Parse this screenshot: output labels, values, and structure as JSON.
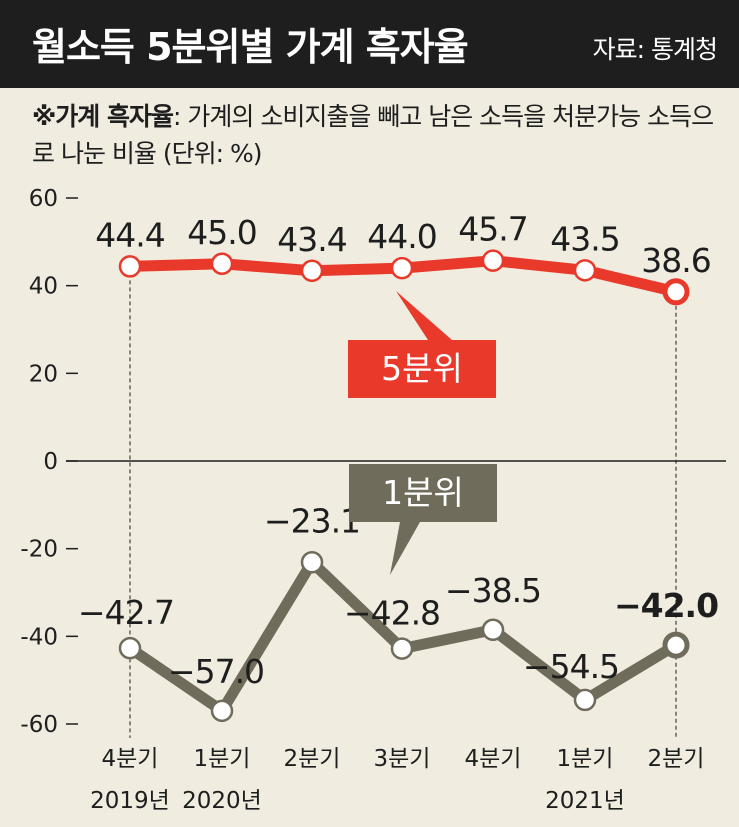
{
  "header": {
    "title": "월소득 5분위별 가계 흑자율",
    "source": "자료: 통계청"
  },
  "note": {
    "term": "※가계 흑자율",
    "text": ": 가계의 소비지출을 빼고 남은 소득을 처분가능 소득으로 나눈 비율 (단위: %)"
  },
  "colors": {
    "background": "#f0ece0",
    "header": "#1e1e1e",
    "quintile5": "#e8392b",
    "quintile1": "#706c5c",
    "text": "#1e1e1e"
  },
  "chart_data": {
    "type": "line",
    "categories": [
      [
        "4분기",
        "2019년"
      ],
      [
        "1분기",
        "2020년"
      ],
      [
        "2분기",
        ""
      ],
      [
        "3분기",
        ""
      ],
      [
        "4분기",
        ""
      ],
      [
        "1분기",
        "2021년"
      ],
      [
        "2분기",
        ""
      ]
    ],
    "yticks": [
      "60",
      "40",
      "20",
      "0",
      "-20",
      "-40",
      "-60"
    ],
    "ylim": [
      -60,
      60
    ],
    "grid": false,
    "series": [
      {
        "name": "5분위",
        "values": [
          44.4,
          45.0,
          43.4,
          44.0,
          45.7,
          43.5,
          38.6
        ],
        "labels": [
          "44.4",
          "45.0",
          "43.4",
          "44.0",
          "45.7",
          "43.5",
          "38.6"
        ],
        "color": "#e8392b"
      },
      {
        "name": "1분위",
        "values": [
          -42.7,
          -57.0,
          -23.1,
          -42.8,
          -38.5,
          -54.5,
          -42.0
        ],
        "labels": [
          "−42.7",
          "−57.0",
          "−23.1",
          "−42.8",
          "−38.5",
          "−54.5",
          "−42.0"
        ],
        "color": "#706c5c"
      }
    ]
  }
}
